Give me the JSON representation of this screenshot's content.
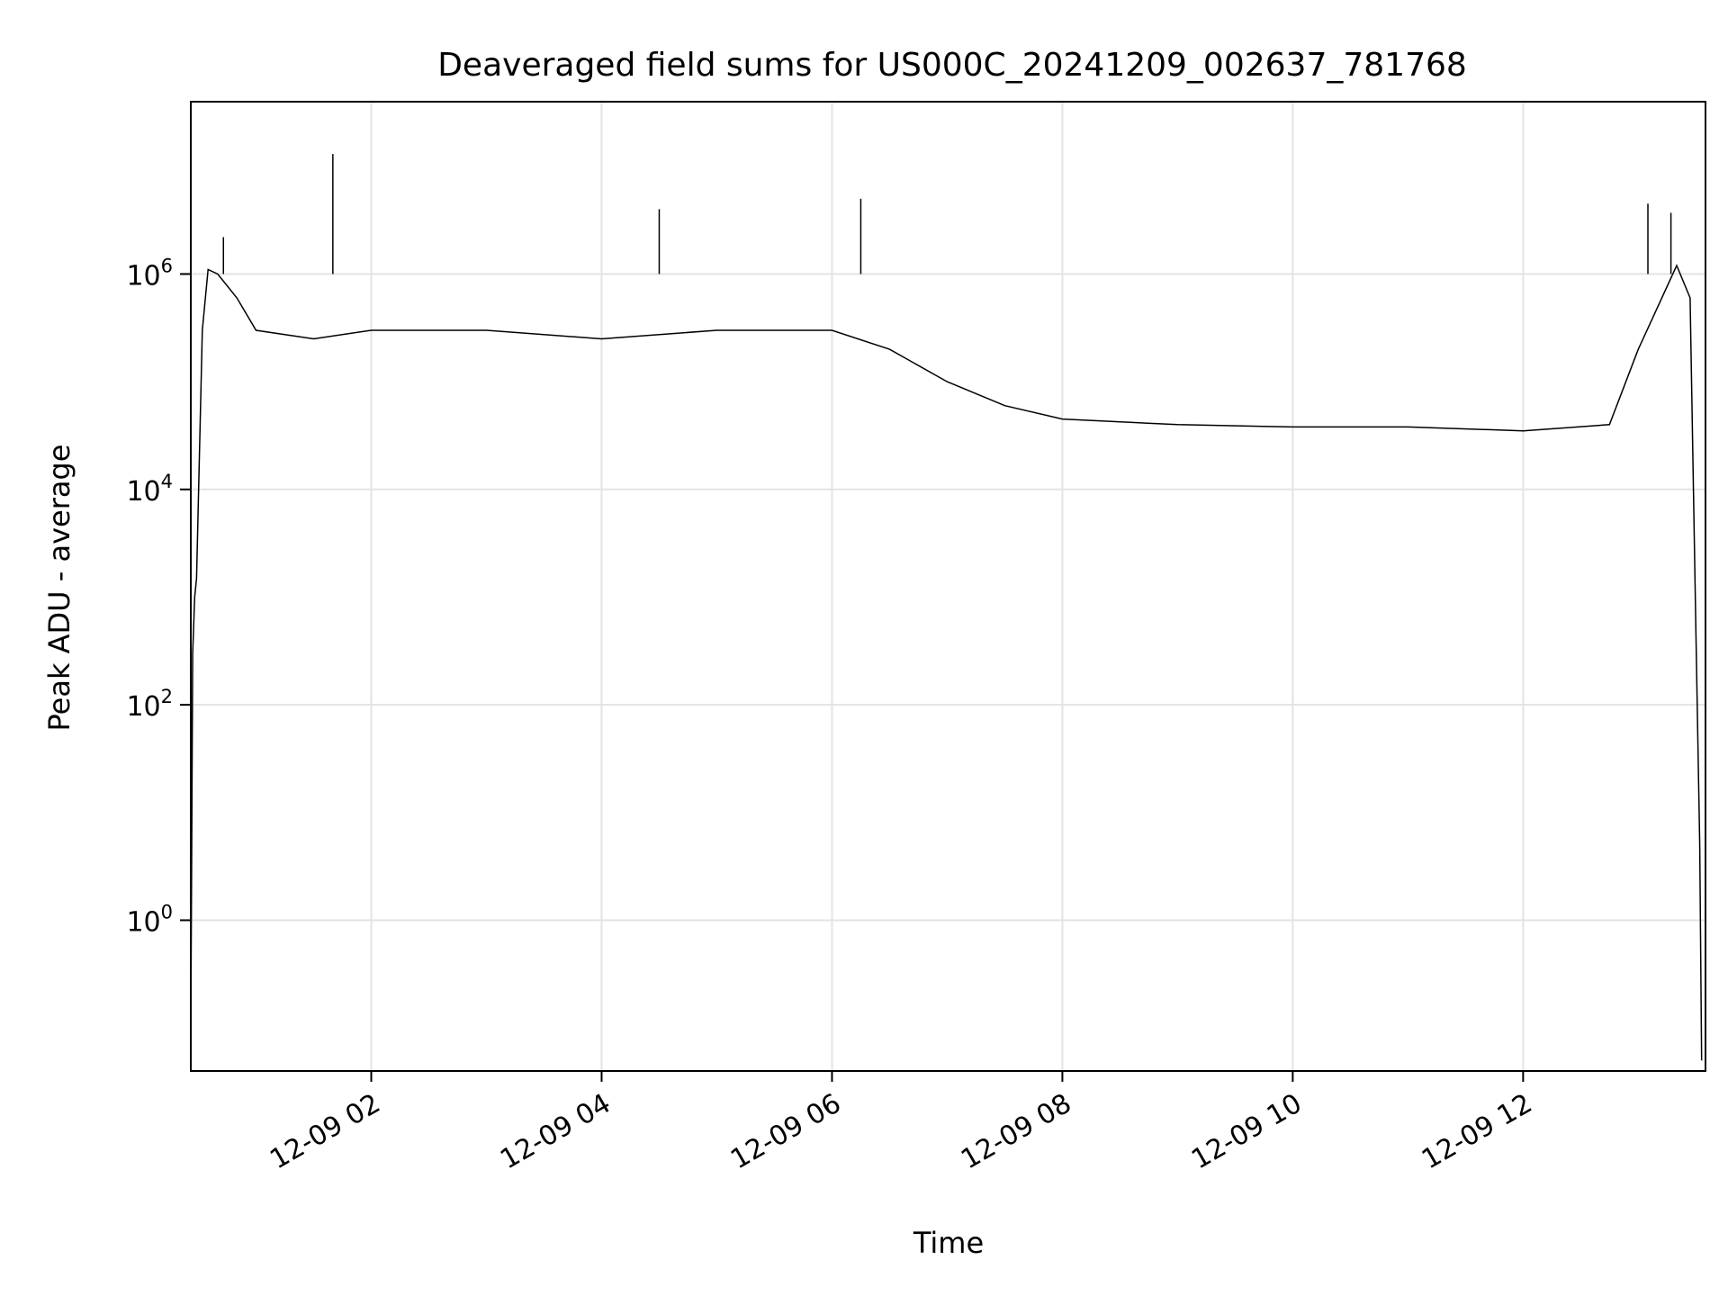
{
  "chart_data": {
    "type": "line",
    "title": "Deaveraged field sums for US000C_20241209_002637_781768",
    "xlabel": "Time",
    "ylabel": "Peak ADU - average",
    "yscale": "log",
    "grid": true,
    "xlim": [
      "12-09 00:26",
      "12-09 13:35"
    ],
    "ylim_exponent": [
      -1.4,
      7.6
    ],
    "x_ticks": [
      "12-09 02",
      "12-09 04",
      "12-09 06",
      "12-09 08",
      "12-09 10",
      "12-09 12"
    ],
    "y_ticks": [
      {
        "base": "10",
        "exp": "0"
      },
      {
        "base": "10",
        "exp": "2"
      },
      {
        "base": "10",
        "exp": "4"
      },
      {
        "base": "10",
        "exp": "6"
      }
    ],
    "line_color": "#000000",
    "series": [
      {
        "points": [
          [
            "12-09 00:26",
            0.1
          ],
          [
            "12-09 00:27",
            300
          ],
          [
            "12-09 00:28",
            1000
          ],
          [
            "12-09 00:29",
            1500
          ],
          [
            "12-09 00:32",
            300000
          ],
          [
            "12-09 00:35",
            1100000
          ],
          [
            "12-09 00:40",
            1000000
          ],
          [
            "12-09 00:50",
            600000
          ],
          [
            "12-09 01:00",
            300000
          ],
          [
            "12-09 01:30",
            250000
          ],
          [
            "12-09 02:00",
            300000
          ],
          [
            "12-09 03:00",
            300000
          ],
          [
            "12-09 04:00",
            250000
          ],
          [
            "12-09 05:00",
            300000
          ],
          [
            "12-09 06:00",
            300000
          ],
          [
            "12-09 06:30",
            200000
          ],
          [
            "12-09 07:00",
            100000
          ],
          [
            "12-09 07:30",
            60000
          ],
          [
            "12-09 08:00",
            45000
          ],
          [
            "12-09 09:00",
            40000
          ],
          [
            "12-09 10:00",
            38000
          ],
          [
            "12-09 11:00",
            38000
          ],
          [
            "12-09 12:00",
            35000
          ],
          [
            "12-09 12:45",
            40000
          ],
          [
            "12-09 13:00",
            200000
          ],
          [
            "12-09 13:20",
            1200000
          ],
          [
            "12-09 13:27",
            600000
          ],
          [
            "12-09 13:30",
            500
          ],
          [
            "12-09 13:32",
            5
          ],
          [
            "12-09 13:33",
            0.05
          ]
        ]
      }
    ],
    "spikes": [
      [
        "12-09 00:43",
        2200000
      ],
      [
        "12-09 01:40",
        13000000
      ],
      [
        "12-09 04:30",
        4000000
      ],
      [
        "12-09 06:15",
        5000000
      ],
      [
        "12-09 13:05",
        4500000
      ],
      [
        "12-09 13:17",
        3700000
      ]
    ]
  }
}
